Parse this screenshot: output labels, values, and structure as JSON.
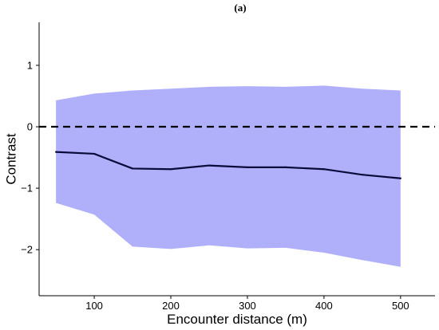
{
  "chart_data": {
    "type": "line",
    "title": "(a)",
    "xlabel": "Encounter distance (m)",
    "ylabel": "Contrast",
    "xlim": [
      28,
      545
    ],
    "ylim": [
      -2.75,
      1.7
    ],
    "x_ticks": [
      100,
      200,
      300,
      400,
      500
    ],
    "y_ticks": [
      -2,
      -1,
      0,
      1
    ],
    "x": [
      50,
      100,
      150,
      200,
      250,
      300,
      350,
      400,
      450,
      500
    ],
    "series": [
      {
        "values": [
          -0.41,
          -0.44,
          -0.68,
          -0.69,
          -0.63,
          -0.66,
          -0.66,
          -0.69,
          -0.78,
          -0.84
        ],
        "lower": [
          -1.24,
          -1.43,
          -1.95,
          -1.99,
          -1.93,
          -1.98,
          -1.97,
          -2.05,
          -2.17,
          -2.28
        ],
        "upper": [
          0.43,
          0.54,
          0.59,
          0.62,
          0.65,
          0.66,
          0.65,
          0.67,
          0.62,
          0.59
        ],
        "line_color": "#0b0b3b",
        "band_color": "#b0b0fa"
      }
    ],
    "reference_line": {
      "y": 0,
      "style": "dashed",
      "color": "#000000"
    },
    "grid": false,
    "legend": "none"
  }
}
